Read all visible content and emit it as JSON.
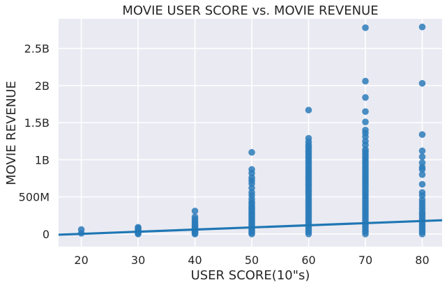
{
  "chart_data": {
    "type": "scatter",
    "title": "MOVIE USER SCORE vs. MOVIE REVENUE",
    "xlabel": "USER SCORE(10\"s)",
    "ylabel": "MOVIE REVENUE",
    "xlim": [
      16,
      83.5
    ],
    "ylim": [
      -170000000,
      2900000000
    ],
    "xticks": [
      20,
      30,
      40,
      50,
      60,
      70,
      80
    ],
    "yticks": [
      {
        "value": 0,
        "label": "0"
      },
      {
        "value": 500000000,
        "label": "500M"
      },
      {
        "value": 1000000000,
        "label": "1B"
      },
      {
        "value": 1500000000,
        "label": "1.5B"
      },
      {
        "value": 2000000000,
        "label": "2B"
      },
      {
        "value": 2500000000,
        "label": "2.5B"
      }
    ],
    "grid": true,
    "colors": {
      "points": "#2b7bba",
      "line": "#1f77b4",
      "background": "#eaeaf2",
      "grid": "#ffffff"
    },
    "regression": {
      "x": [
        16,
        83.5
      ],
      "y": [
        -10000000,
        185000000
      ]
    },
    "points": [
      {
        "x": 20,
        "y": [
          10000000,
          60000000
        ]
      },
      {
        "x": 30,
        "y": [
          0,
          10000000,
          20000000,
          30000000,
          45000000,
          60000000,
          80000000,
          90000000
        ]
      },
      {
        "x": 40,
        "y": [
          0,
          10000000,
          25000000,
          40000000,
          55000000,
          70000000,
          90000000,
          110000000,
          130000000,
          150000000,
          170000000,
          200000000,
          230000000,
          310000000
        ]
      },
      {
        "x": 50,
        "y": [
          0,
          20000000,
          40000000,
          60000000,
          80000000,
          100000000,
          120000000,
          140000000,
          160000000,
          180000000,
          200000000,
          220000000,
          240000000,
          260000000,
          280000000,
          300000000,
          320000000,
          340000000,
          360000000,
          380000000,
          410000000,
          430000000,
          470000000,
          520000000,
          560000000,
          620000000,
          680000000,
          720000000,
          760000000,
          820000000,
          870000000,
          1100000000
        ]
      },
      {
        "x": 60,
        "y": [
          0,
          30000000,
          60000000,
          90000000,
          120000000,
          150000000,
          180000000,
          210000000,
          240000000,
          270000000,
          300000000,
          330000000,
          360000000,
          390000000,
          420000000,
          450000000,
          480000000,
          510000000,
          540000000,
          570000000,
          600000000,
          630000000,
          660000000,
          690000000,
          720000000,
          750000000,
          780000000,
          810000000,
          840000000,
          870000000,
          900000000,
          930000000,
          960000000,
          990000000,
          1020000000,
          1050000000,
          1080000000,
          1110000000,
          1140000000,
          1170000000,
          1200000000,
          1240000000,
          1290000000,
          1670000000
        ]
      },
      {
        "x": 70,
        "y": [
          0,
          30000000,
          60000000,
          90000000,
          120000000,
          150000000,
          180000000,
          210000000,
          240000000,
          270000000,
          300000000,
          330000000,
          360000000,
          390000000,
          420000000,
          450000000,
          480000000,
          510000000,
          540000000,
          570000000,
          600000000,
          630000000,
          660000000,
          690000000,
          720000000,
          750000000,
          780000000,
          810000000,
          840000000,
          870000000,
          900000000,
          930000000,
          960000000,
          990000000,
          1020000000,
          1050000000,
          1080000000,
          1110000000,
          1140000000,
          1200000000,
          1250000000,
          1310000000,
          1360000000,
          1400000000,
          1510000000,
          1650000000,
          1840000000,
          2060000000,
          2780000000
        ]
      },
      {
        "x": 80,
        "y": [
          0,
          30000000,
          60000000,
          90000000,
          120000000,
          150000000,
          180000000,
          210000000,
          240000000,
          270000000,
          300000000,
          340000000,
          380000000,
          420000000,
          460000000,
          520000000,
          560000000,
          670000000,
          800000000,
          870000000,
          900000000,
          960000000,
          1040000000,
          1120000000,
          1340000000,
          2030000000,
          2790000000
        ]
      }
    ]
  }
}
